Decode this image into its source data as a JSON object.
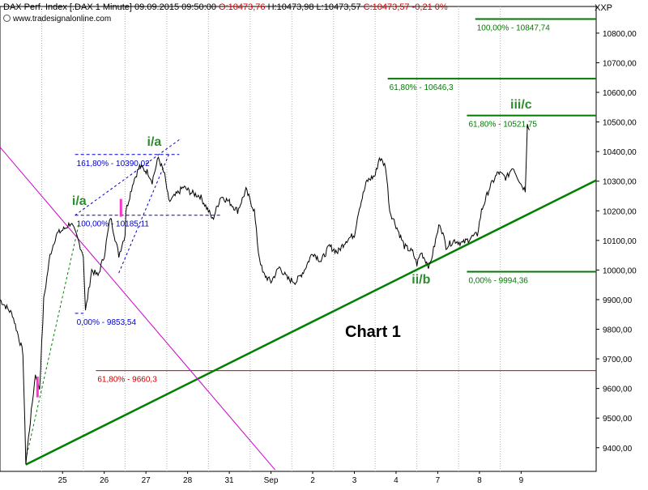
{
  "header": {
    "instrument": "DAX Perf. Index [.DAX  1 Minute]",
    "datetime": "09.09.2015 09:50:00",
    "open": "O:10473,76",
    "high": "H:10473,98",
    "low": "L:10473,57",
    "close": "C:10473,57",
    "change": "-0,21",
    "change_pct": "0%",
    "source": "www.tradesignalonline.com",
    "symbol": "XXP"
  },
  "chart_data": {
    "type": "line",
    "title": "Chart 1",
    "ylim": [
      9320,
      10890
    ],
    "y_ticks": [
      9400,
      9500,
      9600,
      9700,
      9800,
      9900,
      10000,
      10100,
      10200,
      10300,
      10400,
      10500,
      10600,
      10700,
      10800
    ],
    "y_tick_labels": [
      "9400,00",
      "9500,00",
      "9600,00",
      "9700,00",
      "9800,00",
      "9900,00",
      "10000,00",
      "10100,00",
      "10200,00",
      "10300,00",
      "10400,00",
      "10500,00",
      "10600,00",
      "10700,00",
      "10800,00"
    ],
    "x_labels": [
      "25",
      "26",
      "27",
      "28",
      "31",
      "Sep",
      "2",
      "3",
      "4",
      "7",
      "8",
      "9"
    ],
    "x_label_index": [
      1.5,
      2.5,
      3.5,
      4.5,
      5.5,
      6.5,
      7.5,
      8.5,
      9.5,
      10.5,
      11.5,
      12.5
    ],
    "session_boundaries": [
      1,
      2,
      3,
      4,
      5,
      6,
      7,
      8,
      9,
      10,
      11,
      12
    ],
    "x_range": [
      0,
      14.3
    ],
    "grid": "vertical",
    "price": [
      [
        0.0,
        9900
      ],
      [
        0.3,
        9850
      ],
      [
        0.55,
        9720
      ],
      [
        0.62,
        9350
      ],
      [
        0.75,
        9520
      ],
      [
        0.85,
        9650
      ],
      [
        0.95,
        9600
      ],
      [
        1.05,
        9900
      ],
      [
        1.2,
        10050
      ],
      [
        1.35,
        10120
      ],
      [
        1.55,
        10140
      ],
      [
        1.7,
        10160
      ],
      [
        1.85,
        10110
      ],
      [
        2.0,
        10050
      ],
      [
        2.05,
        9860
      ],
      [
        2.2,
        10000
      ],
      [
        2.35,
        9980
      ],
      [
        2.5,
        10050
      ],
      [
        2.65,
        10180
      ],
      [
        2.85,
        10050
      ],
      [
        3.0,
        10120
      ],
      [
        3.02,
        10200
      ],
      [
        3.2,
        10300
      ],
      [
        3.35,
        10350
      ],
      [
        3.55,
        10330
      ],
      [
        3.65,
        10300
      ],
      [
        3.8,
        10380
      ],
      [
        3.95,
        10320
      ],
      [
        4.05,
        10230
      ],
      [
        4.2,
        10250
      ],
      [
        4.4,
        10280
      ],
      [
        4.6,
        10260
      ],
      [
        4.8,
        10250
      ],
      [
        5.0,
        10200
      ],
      [
        5.1,
        10170
      ],
      [
        5.3,
        10250
      ],
      [
        5.5,
        10230
      ],
      [
        5.7,
        10200
      ],
      [
        5.9,
        10270
      ],
      [
        6.1,
        10200
      ],
      [
        6.2,
        10060
      ],
      [
        6.3,
        9990
      ],
      [
        6.5,
        9960
      ],
      [
        6.7,
        10010
      ],
      [
        6.9,
        9970
      ],
      [
        7.1,
        9960
      ],
      [
        7.3,
        10000
      ],
      [
        7.5,
        10060
      ],
      [
        7.7,
        10030
      ],
      [
        7.9,
        10080
      ],
      [
        8.1,
        10060
      ],
      [
        8.3,
        10100
      ],
      [
        8.5,
        10120
      ],
      [
        8.6,
        10200
      ],
      [
        8.8,
        10300
      ],
      [
        9.0,
        10320
      ],
      [
        9.1,
        10380
      ],
      [
        9.25,
        10350
      ],
      [
        9.35,
        10200
      ],
      [
        9.5,
        10150
      ],
      [
        9.7,
        10080
      ],
      [
        9.9,
        10060
      ],
      [
        10.0,
        10020
      ],
      [
        10.1,
        10060
      ],
      [
        10.3,
        10010
      ],
      [
        10.45,
        10100
      ],
      [
        10.55,
        10160
      ],
      [
        10.7,
        10080
      ],
      [
        10.9,
        10100
      ],
      [
        11.1,
        10090
      ],
      [
        11.3,
        10110
      ],
      [
        11.45,
        10120
      ],
      [
        11.55,
        10200
      ],
      [
        11.75,
        10280
      ],
      [
        11.95,
        10330
      ],
      [
        12.15,
        10310
      ],
      [
        12.3,
        10350
      ],
      [
        12.4,
        10320
      ],
      [
        12.5,
        10290
      ],
      [
        12.55,
        10280
      ],
      [
        12.6,
        10270
      ],
      [
        12.65,
        10500
      ],
      [
        12.7,
        10473
      ]
    ],
    "levels": [
      {
        "label": "100,00% - 10847,74",
        "value": 10847.74,
        "x_start": 11.4,
        "color": "#007a00"
      },
      {
        "label": "61,80% - 10646,3",
        "value": 10646.3,
        "x_start": 9.3,
        "color": "#007a00"
      },
      {
        "label": "61,80% - 10521,75",
        "value": 10521.75,
        "x_start": 11.2,
        "color": "#007a00"
      },
      {
        "label": "0,00% - 9994,36",
        "value": 9994.36,
        "x_start": 11.2,
        "color": "#007a00"
      },
      {
        "label": "161,80% - 10390,02",
        "value": 10390.02,
        "x_start": 1.8,
        "x_end": 4.3,
        "color": "#0000cc",
        "dashed": true
      },
      {
        "label": "100,00% - 10185,11",
        "value": 10185.11,
        "x_start": 1.8,
        "x_end": 5.3,
        "color": "#0000cc",
        "dashed": true
      },
      {
        "label": "0,00% - 9853,54",
        "value": 9853.54,
        "x_start": 1.8,
        "x_end": 2.0,
        "color": "#0000cc",
        "dashed": true
      },
      {
        "label": "61,80% - 9660,3",
        "value": 9660.3,
        "x_start": 2.3,
        "color": "#cc0000"
      }
    ],
    "wave_labels": [
      {
        "text": "i/a",
        "x": 1.9,
        "y": 10220
      },
      {
        "text": "i/a",
        "x": 3.7,
        "y": 10420
      },
      {
        "text": "ii/b",
        "x": 10.1,
        "y": 9955
      },
      {
        "text": "iii/c",
        "x": 12.5,
        "y": 10545
      }
    ],
    "trendlines": [
      {
        "name": "green-support-trendline",
        "from": [
          0.62,
          9343
        ],
        "to": [
          14.3,
          10303
        ],
        "color": "#008000",
        "width": 2.5
      },
      {
        "name": "magenta-resistance-trendline",
        "from": [
          0.0,
          10415
        ],
        "to": [
          6.6,
          9325
        ],
        "color": "#cc00cc",
        "width": 1
      },
      {
        "name": "green-dashed-trendline",
        "from": [
          0.62,
          9360
        ],
        "to": [
          1.9,
          10160
        ],
        "color": "#008000",
        "width": 1,
        "dashed": true
      },
      {
        "name": "blue-channel-upper",
        "from": [
          1.8,
          10185
        ],
        "to": [
          4.3,
          10440
        ],
        "color": "#0000cc",
        "width": 1,
        "dashed": true
      },
      {
        "name": "blue-channel-lower",
        "from": [
          2.85,
          9990
        ],
        "to": [
          4.05,
          10390
        ],
        "color": "#0000cc",
        "width": 1,
        "dashed": true
      }
    ],
    "highlights": [
      {
        "x": 0.9,
        "from": 9640,
        "to": 9570,
        "color": "#ff33cc"
      },
      {
        "x": 2.9,
        "from": 10180,
        "to": 10240,
        "color": "#ff33cc"
      }
    ]
  }
}
